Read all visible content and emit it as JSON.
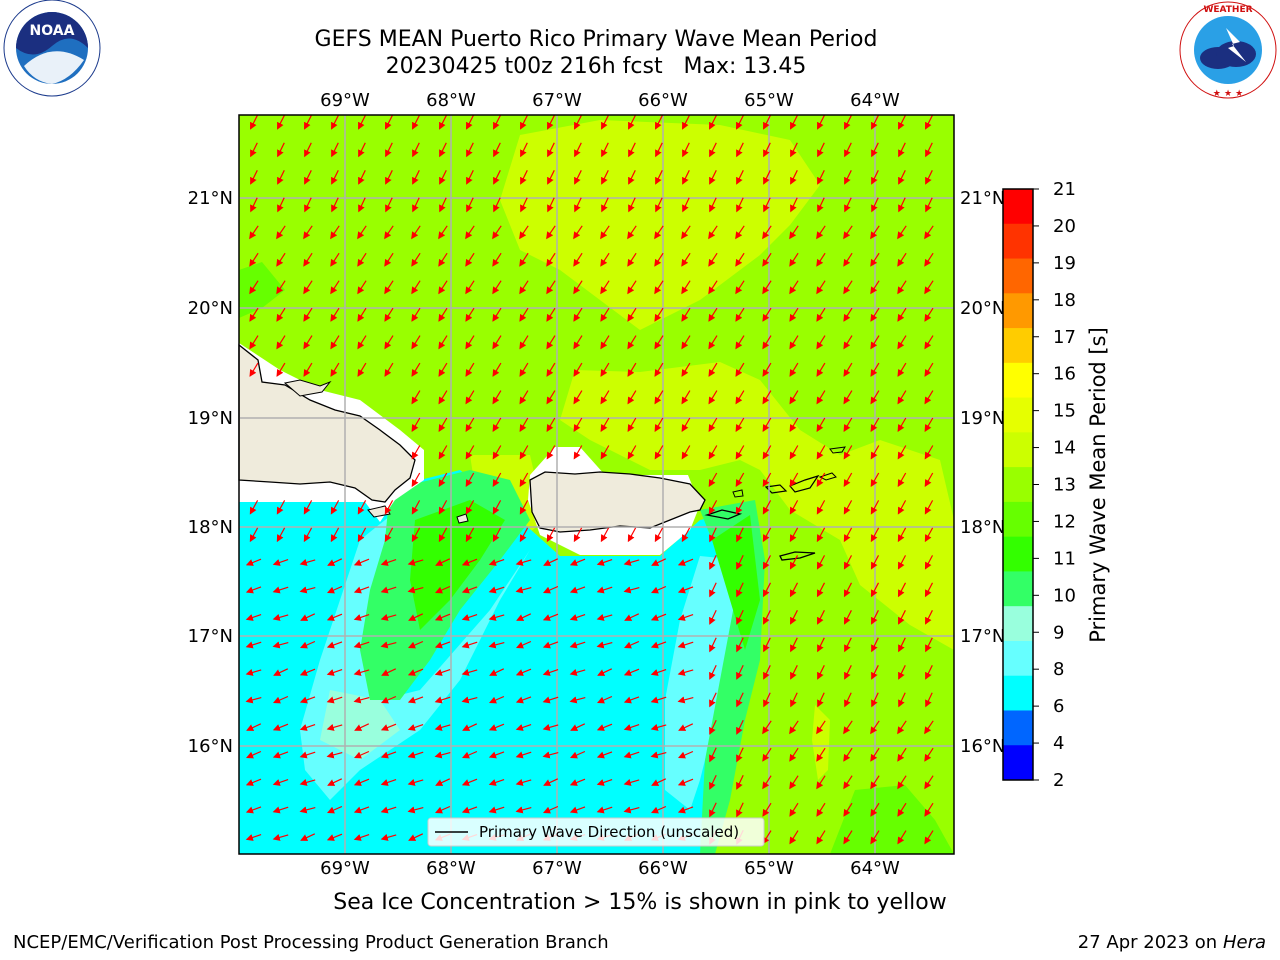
{
  "header": {
    "title_line1": "GEFS MEAN Puerto Rico Primary Wave Mean Period",
    "title_line2": "20230425 t00z 216h fcst   Max: 13.45"
  },
  "logos": {
    "left": {
      "name": "NOAA",
      "ring_text": "NATIONAL OCEANIC AND ATMOSPHERIC ADMINISTRATION",
      "bottom_text": "U.S. DEPARTMENT OF COMMERCE"
    },
    "right": {
      "name": "NATIONAL WEATHER SERVICE"
    }
  },
  "map": {
    "lon_labels": [
      "69°W",
      "68°W",
      "67°W",
      "66°W",
      "65°W",
      "64°W"
    ],
    "lat_labels": [
      "21°N",
      "20°N",
      "19°N",
      "18°N",
      "17°N",
      "16°N"
    ],
    "legend_label": "Primary Wave Direction (unscaled)",
    "arrow_color": "#ff0000"
  },
  "colorbar": {
    "label": "Primary Wave Mean Period [s]",
    "ticks": [
      "21",
      "20",
      "19",
      "18",
      "17",
      "16",
      "15",
      "14",
      "13",
      "12",
      "11",
      "10",
      "9",
      "8",
      "6",
      "4",
      "2"
    ],
    "colors_top_to_bottom": [
      "#ff0000",
      "#ff3300",
      "#ff6600",
      "#ff9900",
      "#ffcc00",
      "#ffff00",
      "#e6ff00",
      "#ccff00",
      "#99ff00",
      "#66ff00",
      "#33ff00",
      "#33ff66",
      "#99ffdd",
      "#66ffff",
      "#00ffff",
      "#0066ff",
      "#0000ff"
    ]
  },
  "note": "Sea Ice Concentration > 15% is shown in pink to yellow",
  "footer": {
    "left": "NCEP/EMC/Verification Post Processing Product Generation Branch",
    "date": "27 Apr 2023 on ",
    "host": "Hera"
  }
}
